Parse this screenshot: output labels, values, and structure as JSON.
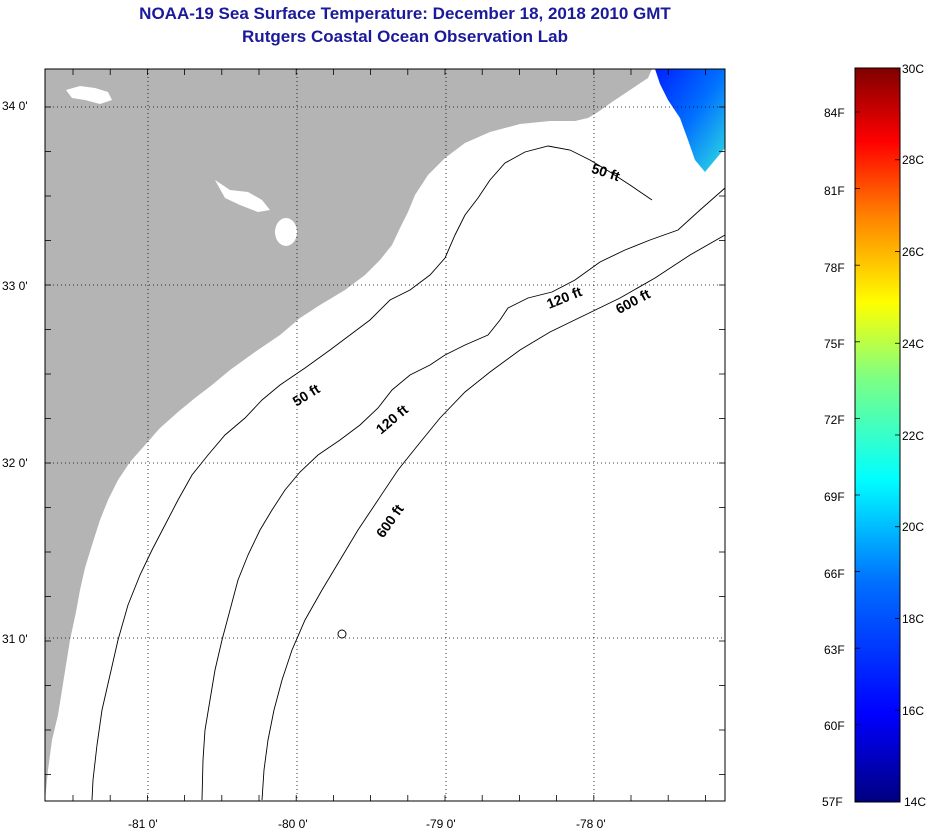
{
  "header": {
    "title": "NOAA-19 Sea Surface Temperature:  December 18, 2018 2010 GMT",
    "subtitle": "Rutgers Coastal Ocean Observation Lab"
  },
  "map": {
    "lon_labels": [
      "-81 0'",
      "-80 0'",
      "-79 0'",
      "-78 0'"
    ],
    "lat_labels": [
      "34 0'",
      "33 0'",
      "32 0'",
      "31 0'"
    ],
    "contour_labels": [
      "50 ft",
      "120 ft",
      "600 ft",
      "50 ft",
      "120 ft",
      "600 ft"
    ],
    "land_color": "#b4b4b4",
    "ocean_color": "#ffffff"
  },
  "colorbar": {
    "celsius_labels": [
      "30C",
      "28C",
      "26C",
      "24C",
      "22C",
      "20C",
      "18C",
      "16C",
      "14C"
    ],
    "fahrenheit_labels": [
      "84F",
      "81F",
      "78F",
      "75F",
      "72F",
      "69F",
      "66F",
      "63F",
      "60F",
      "57F"
    ],
    "gradient_colors": [
      "#000080",
      "#0000ff",
      "#0080ff",
      "#00ffff",
      "#80ff80",
      "#ffff00",
      "#ff8000",
      "#ff0000",
      "#800000"
    ]
  }
}
